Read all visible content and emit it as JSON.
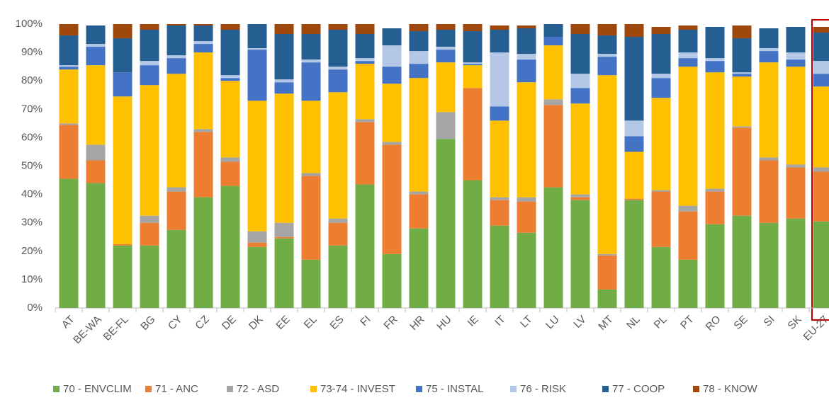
{
  "chart_data": {
    "type": "stacked_bar",
    "categories": [
      "AT",
      "BE-WA",
      "BE-FL",
      "BG",
      "CY",
      "CZ",
      "DE",
      "DK",
      "EE",
      "EL",
      "ES",
      "FI",
      "FR",
      "HR",
      "HU",
      "IE",
      "IT",
      "LT",
      "LU",
      "LV",
      "MT",
      "NL",
      "PL",
      "PT",
      "RO",
      "SE",
      "SI",
      "SK",
      "EU-27"
    ],
    "ylim": [
      0,
      100
    ],
    "yticks": [
      {
        "value": 0,
        "label": "0%"
      },
      {
        "value": 10,
        "label": "10%"
      },
      {
        "value": 20,
        "label": "20%"
      },
      {
        "value": 30,
        "label": "30%"
      },
      {
        "value": 40,
        "label": "40%"
      },
      {
        "value": 50,
        "label": "50%"
      },
      {
        "value": 60,
        "label": "60%"
      },
      {
        "value": 70,
        "label": "70%"
      },
      {
        "value": 80,
        "label": "80%"
      },
      {
        "value": 90,
        "label": "90%"
      },
      {
        "value": 100,
        "label": "100%"
      }
    ],
    "grid": false,
    "legend": "bottom",
    "series": [
      {
        "name": "70 - ENVCLIM",
        "color": "#70ad47",
        "values": [
          45.5,
          44,
          22,
          22,
          27.5,
          39,
          43,
          21.5,
          24.5,
          17,
          22,
          43.5,
          19,
          28,
          59.5,
          45,
          29,
          26.5,
          42.5,
          38,
          6.5,
          38,
          21.5,
          17,
          29.5,
          32.5,
          30,
          31.5,
          30.5
        ]
      },
      {
        "name": "71 - ANC",
        "color": "#ed7d31",
        "values": [
          19,
          8,
          0.5,
          8,
          13.5,
          23,
          8.5,
          1.5,
          0.5,
          29.5,
          8,
          22,
          38.5,
          12,
          0,
          32.5,
          9,
          11,
          29,
          1,
          12,
          0.5,
          19.5,
          17,
          11.5,
          31,
          22,
          18,
          17.5
        ]
      },
      {
        "name": "72 - ASD",
        "color": "#a5a5a5",
        "values": [
          0.5,
          5.5,
          0,
          2.5,
          1.5,
          1,
          1.5,
          4,
          5,
          1,
          1.5,
          1,
          1,
          1,
          9.5,
          0,
          1,
          1.5,
          2,
          1,
          0.5,
          0,
          0.5,
          2,
          1,
          0.5,
          1,
          1,
          1.5
        ]
      },
      {
        "name": "73-74 - INVEST",
        "color": "#ffc000",
        "values": [
          19,
          28,
          52,
          46,
          40,
          27,
          27,
          46,
          45.5,
          25.5,
          44.5,
          19.5,
          20.5,
          40,
          17.5,
          8,
          27,
          40.5,
          19,
          32,
          63,
          16.5,
          32.5,
          49,
          41,
          17.5,
          33.5,
          34.5,
          28.5
        ]
      },
      {
        "name": "75 - INSTAL",
        "color": "#4472c4",
        "values": [
          1,
          6.5,
          8.5,
          7,
          5.5,
          3,
          1,
          18,
          4,
          13.5,
          8,
          1,
          6,
          5,
          4.5,
          0.5,
          5,
          8,
          3,
          5.5,
          6.5,
          5.5,
          7,
          3,
          4,
          1,
          4,
          2.5,
          4.5
        ]
      },
      {
        "name": "76 - RISK",
        "color": "#b4c7e7",
        "values": [
          0.5,
          1,
          0,
          1.5,
          1,
          1,
          1,
          0.5,
          1,
          1,
          1,
          1,
          7.5,
          4.5,
          1,
          0.5,
          19,
          2,
          0,
          5,
          1,
          5.5,
          1.5,
          2,
          1,
          0.5,
          1,
          2.5,
          4.5
        ]
      },
      {
        "name": "77 - COOP",
        "color": "#255e91",
        "values": [
          10.5,
          6.5,
          12,
          11,
          10.5,
          5.5,
          16,
          8.5,
          16,
          9,
          13,
          8.5,
          6,
          7,
          6,
          11,
          8,
          9,
          4.5,
          14,
          6.5,
          29.5,
          14,
          8,
          11,
          12,
          7,
          9,
          10
        ]
      },
      {
        "name": "78 - KNOW",
        "color": "#9e480e",
        "values": [
          4,
          0,
          5,
          2,
          0.5,
          0.5,
          2,
          0,
          3.5,
          3.5,
          2,
          3.5,
          0,
          2.5,
          2,
          2.5,
          1.5,
          1,
          0,
          3.5,
          4,
          4.5,
          2.5,
          1.5,
          0,
          4.5,
          0,
          0,
          2
        ]
      }
    ]
  }
}
